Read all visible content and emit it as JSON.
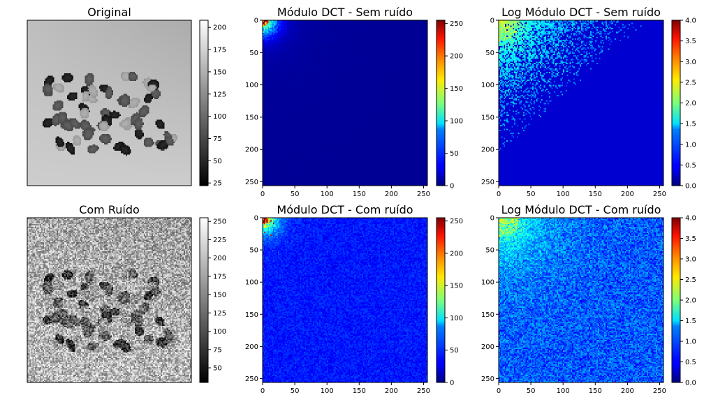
{
  "chart_data": [
    {
      "type": "heatmap",
      "title": "Original",
      "content": "grayscale-photo",
      "image_variant": "clean",
      "show_axes": false,
      "colormap": "gray",
      "colorbar": {
        "range": [
          22,
          208
        ],
        "ticks": [
          "25",
          "50",
          "75",
          "100",
          "125",
          "150",
          "175",
          "200"
        ],
        "tick_values": [
          25,
          50,
          75,
          100,
          125,
          150,
          175,
          200
        ]
      }
    },
    {
      "type": "heatmap",
      "title": "Módulo DCT - Sem ruído",
      "content": "dct-magnitude",
      "noise": false,
      "log": false,
      "colormap": "jet",
      "xlim": [
        0,
        256
      ],
      "ylim": [
        256,
        0
      ],
      "x_ticks": [
        "0",
        "50",
        "100",
        "150",
        "200",
        "250"
      ],
      "y_ticks": [
        "0",
        "50",
        "100",
        "150",
        "200",
        "250"
      ],
      "colorbar": {
        "range": [
          0,
          255
        ],
        "ticks": [
          "0",
          "50",
          "100",
          "150",
          "200",
          "250"
        ],
        "tick_values": [
          0,
          50,
          100,
          150,
          200,
          250
        ]
      }
    },
    {
      "type": "heatmap",
      "title": "Log Módulo DCT - Sem ruído",
      "content": "dct-log-magnitude",
      "noise": false,
      "log": true,
      "colormap": "jet",
      "xlim": [
        0,
        256
      ],
      "ylim": [
        256,
        0
      ],
      "x_ticks": [
        "0",
        "50",
        "100",
        "150",
        "200",
        "250"
      ],
      "y_ticks": [
        "0",
        "50",
        "100",
        "150",
        "200",
        "250"
      ],
      "colorbar": {
        "range": [
          0,
          4
        ],
        "ticks": [
          "0.0",
          "0.5",
          "1.0",
          "1.5",
          "2.0",
          "2.5",
          "3.0",
          "3.5",
          "4.0"
        ],
        "tick_values": [
          0,
          0.5,
          1,
          1.5,
          2,
          2.5,
          3,
          3.5,
          4
        ]
      }
    },
    {
      "type": "heatmap",
      "title": "Com Ruído",
      "content": "grayscale-photo",
      "image_variant": "noisy",
      "show_axes": false,
      "colormap": "gray",
      "colorbar": {
        "range": [
          30,
          255
        ],
        "ticks": [
          "50",
          "75",
          "100",
          "125",
          "150",
          "175",
          "200",
          "225",
          "250"
        ],
        "tick_values": [
          50,
          75,
          100,
          125,
          150,
          175,
          200,
          225,
          250
        ]
      }
    },
    {
      "type": "heatmap",
      "title": "Módulo DCT - Com ruído",
      "content": "dct-magnitude",
      "noise": true,
      "log": false,
      "colormap": "jet",
      "xlim": [
        0,
        256
      ],
      "ylim": [
        256,
        0
      ],
      "x_ticks": [
        "0",
        "50",
        "100",
        "150",
        "200",
        "250"
      ],
      "y_ticks": [
        "0",
        "50",
        "100",
        "150",
        "200",
        "250"
      ],
      "colorbar": {
        "range": [
          0,
          255
        ],
        "ticks": [
          "0",
          "50",
          "100",
          "150",
          "200",
          "250"
        ],
        "tick_values": [
          0,
          50,
          100,
          150,
          200,
          250
        ]
      }
    },
    {
      "type": "heatmap",
      "title": "Log Módulo DCT - Com ruído",
      "content": "dct-log-magnitude",
      "noise": true,
      "log": true,
      "colormap": "jet",
      "xlim": [
        0,
        256
      ],
      "ylim": [
        256,
        0
      ],
      "x_ticks": [
        "0",
        "50",
        "100",
        "150",
        "200",
        "250"
      ],
      "y_ticks": [
        "0",
        "50",
        "100",
        "150",
        "200",
        "250"
      ],
      "colorbar": {
        "range": [
          0,
          4
        ],
        "ticks": [
          "0.0",
          "0.5",
          "1.0",
          "1.5",
          "2.0",
          "2.5",
          "3.0",
          "3.5",
          "4.0"
        ],
        "tick_values": [
          0,
          0.5,
          1,
          1.5,
          2,
          2.5,
          3,
          3.5,
          4
        ]
      }
    }
  ]
}
